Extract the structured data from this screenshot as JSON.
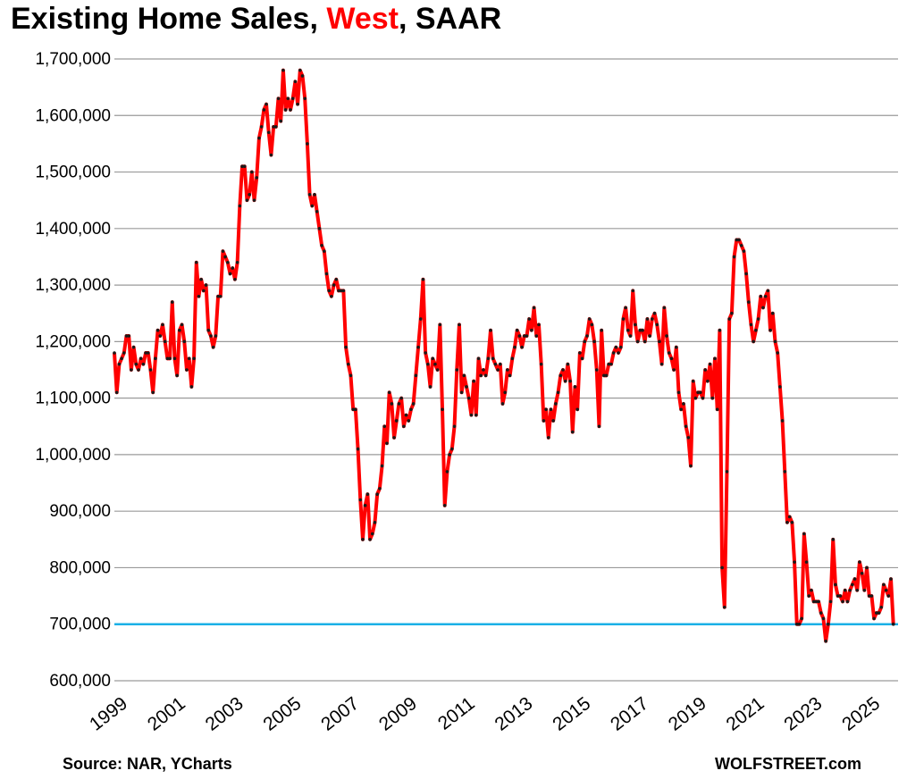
{
  "title_parts": {
    "prefix": "Existing Home Sales, ",
    "region": "West",
    "suffix": ", SAAR"
  },
  "source": "Source: NAR, YCharts",
  "credit": "WOLFSTREET.com",
  "colors": {
    "series_line": "#ff0000",
    "point_marker": "#1a1a1a",
    "reference_line": "#1ab0e6",
    "title_highlight": "#ff0000",
    "gridline": "#9a9a9a"
  },
  "chart_data": {
    "type": "line",
    "title": "Existing Home Sales, West, SAAR",
    "xlabel": "",
    "ylabel": "",
    "ylim": [
      600000,
      1700000
    ],
    "xlim": [
      1999,
      2026.08
    ],
    "y_ticks": [
      "600,000",
      "700,000",
      "800,000",
      "900,000",
      "1,000,000",
      "1,100,000",
      "1,200,000",
      "1,300,000",
      "1,400,000",
      "1,500,000",
      "1,600,000",
      "1,700,000"
    ],
    "y_tick_values": [
      600000,
      700000,
      800000,
      900000,
      1000000,
      1100000,
      1200000,
      1300000,
      1400000,
      1500000,
      1600000,
      1700000
    ],
    "x_ticks": [
      "1999",
      "2001",
      "2003",
      "2005",
      "2007",
      "2009",
      "2011",
      "2013",
      "2015",
      "2017",
      "2019",
      "2021",
      "2023",
      "2025"
    ],
    "x_tick_values": [
      1999,
      2001,
      2003,
      2005,
      2007,
      2009,
      2011,
      2013,
      2015,
      2017,
      2019,
      2021,
      2023,
      2025
    ],
    "grid": "horizontal",
    "reference_line": {
      "value": 700000
    },
    "series": [
      {
        "x_start": "1999-01",
        "frequency": "monthly",
        "values": [
          1180000,
          1110000,
          1160000,
          1170000,
          1180000,
          1210000,
          1210000,
          1150000,
          1190000,
          1160000,
          1150000,
          1170000,
          1160000,
          1180000,
          1180000,
          1150000,
          1110000,
          1170000,
          1220000,
          1210000,
          1230000,
          1200000,
          1170000,
          1170000,
          1270000,
          1170000,
          1140000,
          1220000,
          1230000,
          1200000,
          1150000,
          1170000,
          1120000,
          1170000,
          1340000,
          1280000,
          1310000,
          1290000,
          1300000,
          1220000,
          1210000,
          1190000,
          1210000,
          1280000,
          1280000,
          1360000,
          1350000,
          1340000,
          1320000,
          1330000,
          1310000,
          1340000,
          1440000,
          1510000,
          1510000,
          1450000,
          1460000,
          1500000,
          1450000,
          1490000,
          1560000,
          1580000,
          1610000,
          1620000,
          1570000,
          1530000,
          1580000,
          1580000,
          1630000,
          1590000,
          1680000,
          1610000,
          1630000,
          1610000,
          1630000,
          1660000,
          1620000,
          1680000,
          1670000,
          1630000,
          1550000,
          1460000,
          1440000,
          1460000,
          1430000,
          1400000,
          1370000,
          1360000,
          1320000,
          1290000,
          1280000,
          1300000,
          1310000,
          1290000,
          1290000,
          1290000,
          1190000,
          1160000,
          1140000,
          1080000,
          1080000,
          1010000,
          920000,
          850000,
          910000,
          930000,
          850000,
          860000,
          880000,
          930000,
          940000,
          980000,
          1050000,
          1020000,
          1110000,
          1090000,
          1030000,
          1060000,
          1090000,
          1100000,
          1050000,
          1070000,
          1060000,
          1080000,
          1090000,
          1140000,
          1190000,
          1240000,
          1310000,
          1180000,
          1160000,
          1120000,
          1170000,
          1160000,
          1150000,
          1230000,
          1080000,
          910000,
          970000,
          1000000,
          1010000,
          1050000,
          1150000,
          1230000,
          1110000,
          1140000,
          1120000,
          1100000,
          1070000,
          1130000,
          1070000,
          1170000,
          1140000,
          1150000,
          1140000,
          1170000,
          1220000,
          1170000,
          1160000,
          1150000,
          1160000,
          1090000,
          1110000,
          1150000,
          1140000,
          1170000,
          1190000,
          1220000,
          1210000,
          1190000,
          1210000,
          1210000,
          1240000,
          1220000,
          1260000,
          1210000,
          1230000,
          1160000,
          1060000,
          1080000,
          1030000,
          1080000,
          1060000,
          1090000,
          1110000,
          1140000,
          1150000,
          1130000,
          1160000,
          1130000,
          1040000,
          1120000,
          1080000,
          1180000,
          1170000,
          1200000,
          1210000,
          1240000,
          1230000,
          1200000,
          1150000,
          1050000,
          1220000,
          1140000,
          1140000,
          1160000,
          1160000,
          1180000,
          1190000,
          1180000,
          1190000,
          1240000,
          1260000,
          1220000,
          1210000,
          1290000,
          1230000,
          1200000,
          1220000,
          1220000,
          1200000,
          1240000,
          1210000,
          1240000,
          1250000,
          1230000,
          1200000,
          1160000,
          1260000,
          1210000,
          1180000,
          1170000,
          1150000,
          1190000,
          1110000,
          1080000,
          1090000,
          1050000,
          1030000,
          980000,
          1130000,
          1100000,
          1110000,
          1110000,
          1100000,
          1150000,
          1130000,
          1160000,
          1100000,
          1170000,
          1080000,
          1220000,
          800000,
          730000,
          970000,
          1240000,
          1250000,
          1350000,
          1380000,
          1380000,
          1370000,
          1360000,
          1320000,
          1270000,
          1230000,
          1200000,
          1220000,
          1240000,
          1280000,
          1260000,
          1280000,
          1290000,
          1220000,
          1250000,
          1200000,
          1180000,
          1120000,
          1060000,
          970000,
          880000,
          890000,
          880000,
          810000,
          700000,
          700000,
          710000,
          860000,
          810000,
          750000,
          760000,
          740000,
          740000,
          740000,
          720000,
          710000,
          670000,
          700000,
          740000,
          850000,
          770000,
          750000,
          750000,
          740000,
          760000,
          740000,
          760000,
          770000,
          780000,
          760000,
          810000,
          790000,
          760000,
          800000,
          750000,
          750000,
          710000,
          720000,
          720000,
          730000,
          770000,
          760000,
          750000,
          780000,
          700000
        ]
      }
    ]
  }
}
